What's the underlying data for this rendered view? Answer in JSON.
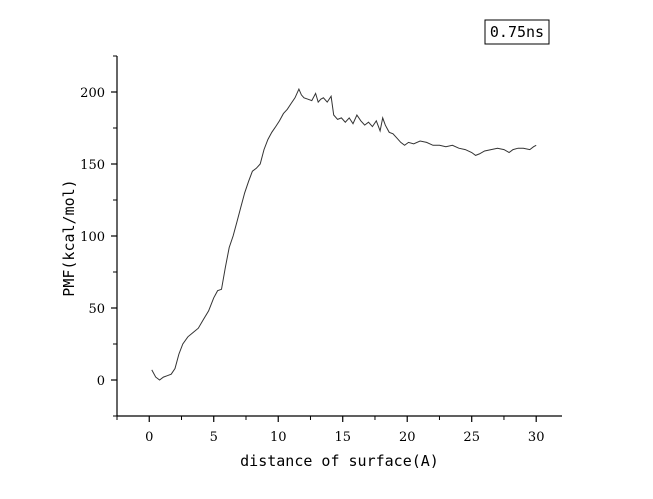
{
  "chart_data": {
    "type": "line",
    "xlabel": "distance of surface(A)",
    "ylabel": "PMF(kcal/mol)",
    "xlim": [
      -2.5,
      32
    ],
    "ylim": [
      -25,
      225
    ],
    "xticks": [
      0,
      5,
      10,
      15,
      20,
      25,
      30
    ],
    "yticks": [
      0,
      50,
      100,
      150,
      200
    ],
    "x_tick_labels": [
      "0",
      "5",
      "10",
      "15",
      "20",
      "25",
      "30"
    ],
    "y_tick_labels": [
      "0",
      "50",
      "100",
      "150",
      "200"
    ],
    "grid": false,
    "legend_label": "0.75ns",
    "legend_position": "top-right",
    "line_color": "#333333",
    "series": [
      {
        "x": [
          0.2,
          0.5,
          0.8,
          1.1,
          1.4,
          1.7,
          2.0,
          2.3,
          2.6,
          3.0,
          3.4,
          3.8,
          4.2,
          4.6,
          5.0,
          5.3,
          5.6,
          5.9,
          6.2,
          6.5,
          6.8,
          7.1,
          7.4,
          7.7,
          8.0,
          8.3,
          8.6,
          8.9,
          9.2,
          9.5,
          9.8,
          10.1,
          10.4,
          10.7,
          11.0,
          11.3,
          11.6,
          11.8,
          12.0,
          12.3,
          12.6,
          12.9,
          13.1,
          13.3,
          13.5,
          13.8,
          14.1,
          14.3,
          14.6,
          14.9,
          15.2,
          15.5,
          15.8,
          16.1,
          16.4,
          16.7,
          17.0,
          17.3,
          17.6,
          17.9,
          18.1,
          18.3,
          18.6,
          18.9,
          19.2,
          19.5,
          19.8,
          20.1,
          20.5,
          21.0,
          21.5,
          22.0,
          22.5,
          23.0,
          23.5,
          24.0,
          24.5,
          25.0,
          25.3,
          25.6,
          26.0,
          26.5,
          27.0,
          27.5,
          27.9,
          28.2,
          28.6,
          29.0,
          29.5,
          29.8,
          30.0
        ],
        "y": [
          7,
          2,
          0,
          2,
          3,
          4,
          8,
          18,
          25,
          30,
          33,
          36,
          42,
          48,
          57,
          62,
          63,
          78,
          92,
          100,
          110,
          120,
          130,
          138,
          145,
          147,
          150,
          160,
          167,
          172,
          176,
          180,
          185,
          188,
          192,
          196,
          202,
          198,
          196,
          195,
          194,
          199,
          193,
          195,
          196,
          193,
          197,
          184,
          181,
          182,
          179,
          182,
          178,
          184,
          180,
          177,
          179,
          176,
          180,
          173,
          182,
          177,
          172,
          171,
          168,
          165,
          163,
          165,
          164,
          166,
          165,
          163,
          163,
          162,
          163,
          161,
          160,
          158,
          156,
          157,
          159,
          160,
          161,
          160,
          158,
          160,
          161,
          161,
          160,
          162,
          163
        ]
      }
    ]
  }
}
